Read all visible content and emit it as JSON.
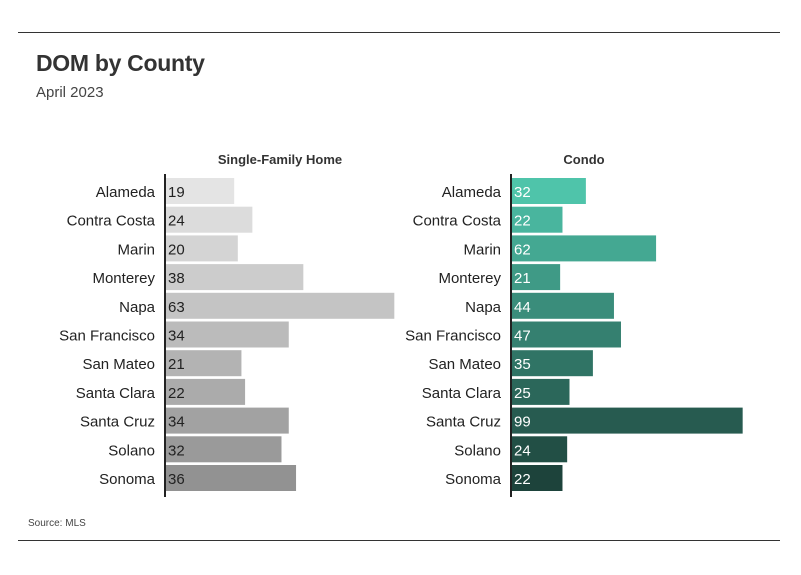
{
  "title": "DOM by County",
  "subtitle": "April 2023",
  "source": "Source: MLS",
  "chart_data": [
    {
      "type": "bar",
      "orientation": "horizontal",
      "title": "Single-Family Home",
      "categories": [
        "Alameda",
        "Contra Costa",
        "Marin",
        "Monterey",
        "Napa",
        "San Francisco",
        "San Mateo",
        "Santa Clara",
        "Santa Cruz",
        "Solano",
        "Sonoma"
      ],
      "values": [
        19,
        24,
        20,
        38,
        63,
        34,
        21,
        22,
        34,
        32,
        36
      ],
      "colors": [
        "#e4e4e4",
        "#dcdcdc",
        "#d4d4d4",
        "#cccccc",
        "#c4c4c4",
        "#bbbbbb",
        "#b3b3b3",
        "#ababab",
        "#a2a2a2",
        "#9a9a9a",
        "#929292"
      ],
      "label_color": "#222222",
      "grid": false,
      "legend": "none"
    },
    {
      "type": "bar",
      "orientation": "horizontal",
      "title": "Condo",
      "categories": [
        "Alameda",
        "Contra Costa",
        "Marin",
        "Monterey",
        "Napa",
        "San Francisco",
        "San Mateo",
        "Santa Clara",
        "Santa Cruz",
        "Solano",
        "Sonoma"
      ],
      "values": [
        32,
        22,
        62,
        21,
        44,
        47,
        35,
        25,
        99,
        24,
        22
      ],
      "colors": [
        "#4fc4aa",
        "#49b59e",
        "#44a892",
        "#3f9a86",
        "#3a8d7b",
        "#358070",
        "#307465",
        "#2b675a",
        "#275b50",
        "#224f45",
        "#1d433b"
      ],
      "label_color": "#ffffff",
      "grid": false,
      "legend": "none"
    }
  ]
}
